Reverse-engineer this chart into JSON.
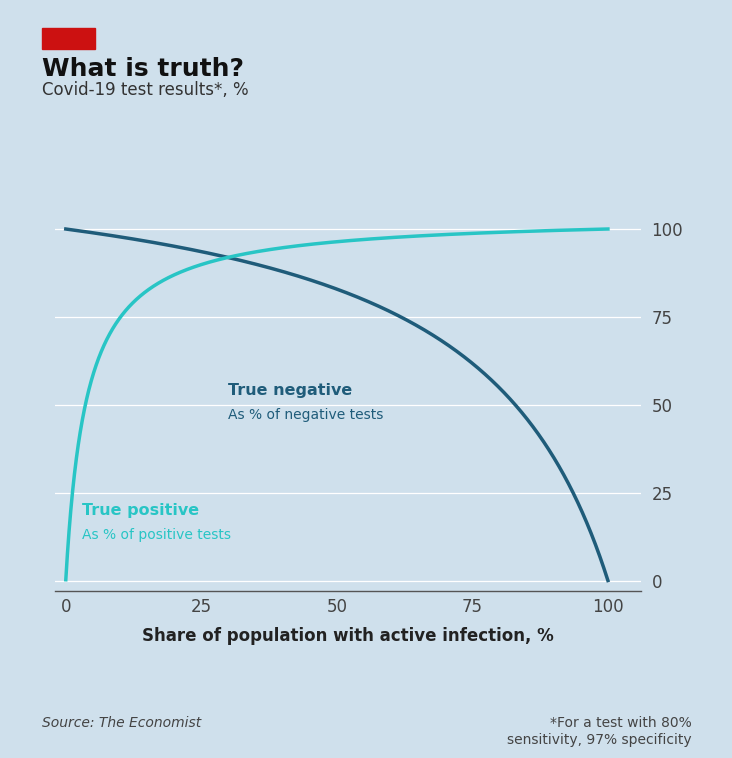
{
  "title": "What is truth?",
  "subtitle": "Covid-19 test results*, %",
  "xlabel": "Share of population with active infection, %",
  "sensitivity": 0.8,
  "specificity": 0.97,
  "bg_color": "#cfe0ec",
  "dark_blue": "#1f5c7a",
  "cyan": "#28c5c5",
  "true_negative_label": "True negative",
  "true_negative_sublabel": "As % of negative tests",
  "true_positive_label": "True positive",
  "true_positive_sublabel": "As % of positive tests",
  "source_text": "Source: The Economist",
  "footnote": "*For a test with 80%\nsensitivity, 97% specificity",
  "red_rect_color": "#cc1111",
  "yticks": [
    0,
    25,
    50,
    75,
    100
  ],
  "xticks": [
    0,
    25,
    50,
    75,
    100
  ],
  "ylim": [
    -3,
    108
  ],
  "xlim": [
    -2,
    106
  ]
}
